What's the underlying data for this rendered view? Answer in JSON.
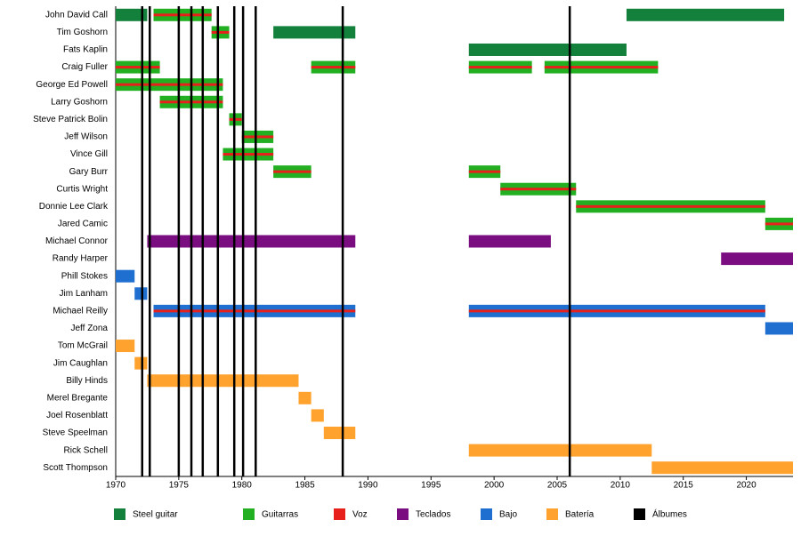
{
  "chart_data": {
    "type": "timeline",
    "categories": [
      "John David Call",
      "Tim Goshorn",
      "Fats Kaplin",
      "Craig Fuller",
      "George Ed Powell",
      "Larry Goshorn",
      "Steve Patrick Bolin",
      "Jeff Wilson",
      "Vince Gill",
      "Gary Burr",
      "Curtis Wright",
      "Donnie Lee Clark",
      "Jared Camic",
      "Michael Connor",
      "Randy Harper",
      "Phill Stokes",
      "Jim Lanham",
      "Michael Reilly",
      "Jeff Zona",
      "Tom McGrail",
      "Jim Caughlan",
      "Billy Hinds",
      "Merel Bregante",
      "Joel Rosenblatt",
      "Steve Speelman",
      "Rick Schell",
      "Scott Thompson"
    ],
    "series": [
      {
        "name": "Steel guitar",
        "color": "#13803c",
        "values": [
          [
            [
              1970,
              1972.5
            ],
            [
              2010.5,
              2023
            ]
          ],
          [
            [
              1982.5,
              1989
            ]
          ],
          [
            [
              1998,
              2010.5
            ]
          ],
          [],
          [],
          [],
          [],
          [],
          [],
          [],
          [],
          [],
          [],
          [],
          [],
          [],
          [],
          [],
          [],
          [],
          [],
          [],
          [],
          [],
          [],
          [],
          []
        ]
      },
      {
        "name": "Guitarras",
        "color": "#22b022",
        "values": [
          [
            [
              1973,
              1977.6
            ]
          ],
          [
            [
              1977.6,
              1979
            ]
          ],
          [],
          [
            [
              1970,
              1973.5
            ],
            [
              1985.5,
              1989
            ],
            [
              1998,
              2003
            ],
            [
              2004,
              2013
            ]
          ],
          [
            [
              1970,
              1978.5
            ]
          ],
          [
            [
              1973.5,
              1978.5
            ]
          ],
          [
            [
              1979,
              1980
            ]
          ],
          [
            [
              1980,
              1982.5
            ]
          ],
          [
            [
              1978.5,
              1982.5
            ]
          ],
          [
            [
              1982.5,
              1985.5
            ],
            [
              1998,
              2000.5
            ]
          ],
          [
            [
              2000.5,
              2006.5
            ]
          ],
          [
            [
              2006.5,
              2021.5
            ]
          ],
          [
            [
              2021.5,
              2023.7
            ]
          ],
          [],
          [],
          [],
          [],
          [],
          [],
          [],
          [],
          [],
          [],
          [],
          [],
          [],
          []
        ]
      },
      {
        "name": "Voz",
        "color": "#e8201c",
        "values": [
          [
            [
              1973,
              1977.6
            ]
          ],
          [
            [
              1977.6,
              1979
            ]
          ],
          [],
          [
            [
              1970,
              1973.5
            ],
            [
              1985.5,
              1989
            ],
            [
              1998,
              2003
            ],
            [
              2004,
              2013
            ]
          ],
          [
            [
              1970,
              1978.5
            ]
          ],
          [
            [
              1973.5,
              1978.5
            ]
          ],
          [
            [
              1979,
              1980
            ]
          ],
          [
            [
              1980,
              1982.5
            ]
          ],
          [
            [
              1978.5,
              1982.5
            ]
          ],
          [
            [
              1982.5,
              1985.5
            ],
            [
              1998,
              2000.5
            ]
          ],
          [
            [
              2000.5,
              2006.5
            ]
          ],
          [
            [
              2006.5,
              2021.5
            ]
          ],
          [
            [
              2021.5,
              2023.7
            ]
          ],
          [],
          [],
          [],
          [],
          [
            [
              1973,
              1989
            ],
            [
              1998,
              2021.5
            ]
          ],
          [],
          [],
          [],
          [],
          [],
          [],
          [],
          [],
          []
        ]
      },
      {
        "name": "Teclados",
        "color": "#7a0e80",
        "values": [
          [],
          [],
          [],
          [],
          [],
          [],
          [],
          [],
          [],
          [],
          [],
          [],
          [],
          [
            [
              1972.5,
              1989
            ],
            [
              1998,
              2004.5
            ]
          ],
          [
            [
              2018,
              2023.7
            ]
          ],
          [],
          [],
          [],
          [],
          [],
          [],
          [],
          [],
          [],
          [],
          [],
          []
        ]
      },
      {
        "name": "Bajo",
        "color": "#1e6fd0",
        "values": [
          [],
          [],
          [],
          [],
          [],
          [],
          [],
          [],
          [],
          [],
          [],
          [],
          [],
          [],
          [],
          [
            [
              1970,
              1971.5
            ]
          ],
          [
            [
              1971.5,
              1972.5
            ]
          ],
          [
            [
              1973,
              1989
            ],
            [
              1998,
              2021.5
            ]
          ],
          [
            [
              2021.5,
              2023.7
            ]
          ],
          [],
          [],
          [],
          [],
          [],
          [],
          [],
          []
        ]
      },
      {
        "name": "Batería",
        "color": "#ffa22e",
        "values": [
          [],
          [],
          [],
          [],
          [],
          [],
          [],
          [],
          [],
          [],
          [],
          [],
          [],
          [],
          [],
          [],
          [],
          [],
          [],
          [
            [
              1970,
              1971.5
            ]
          ],
          [
            [
              1971.5,
              1972.5
            ]
          ],
          [
            [
              1972.5,
              1984.5
            ]
          ],
          [
            [
              1984.5,
              1985.5
            ]
          ],
          [
            [
              1985.5,
              1986.5
            ]
          ],
          [
            [
              1986.5,
              1989
            ]
          ],
          [
            [
              1998,
              2012.5
            ]
          ],
          [
            [
              2012.5,
              2023.7
            ]
          ]
        ]
      }
    ],
    "markers": {
      "name": "Álbumes",
      "color": "#000000",
      "values": [
        1972.1,
        1972.7,
        1975,
        1976,
        1976.9,
        1978.1,
        1979.4,
        1980.1,
        1981.1,
        1988,
        2006
      ]
    },
    "xlim": [
      1970,
      2023.7
    ],
    "xticks": [
      1970,
      1975,
      1980,
      1985,
      1990,
      1995,
      2000,
      2005,
      2010,
      2015,
      2020
    ]
  }
}
